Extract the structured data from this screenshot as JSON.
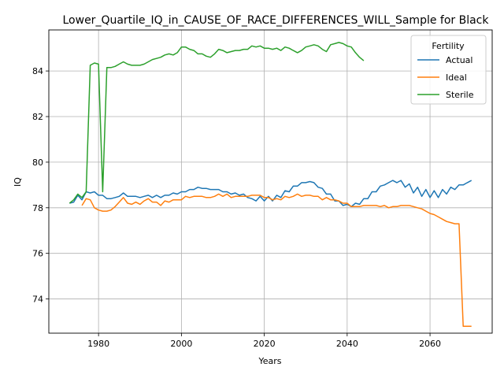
{
  "chart_data": {
    "type": "line",
    "title": "Lower_Quartile_IQ_in_CAUSE_OF_RACE_DIFFERENCES_WILL_Sample for Black",
    "xlabel": "Years",
    "ylabel": "IQ",
    "xlim": [
      1968,
      2075
    ],
    "ylim": [
      72.5,
      85.8
    ],
    "xticks": [
      1980,
      2000,
      2020,
      2040,
      2060
    ],
    "yticks": [
      74,
      76,
      78,
      80,
      82,
      84
    ],
    "grid": true,
    "legend": {
      "title": "Fertility",
      "placement": "top-right"
    },
    "series": [
      {
        "name": "Actual",
        "color": "#1f77b4",
        "points": [
          [
            1973,
            78.2
          ],
          [
            1974,
            78.25
          ],
          [
            1975,
            78.55
          ],
          [
            1976,
            78.35
          ],
          [
            1977,
            78.7
          ],
          [
            1978,
            78.65
          ],
          [
            1979,
            78.7
          ],
          [
            1980,
            78.55
          ],
          [
            1981,
            78.55
          ],
          [
            1982,
            78.4
          ],
          [
            1983,
            78.4
          ],
          [
            1984,
            78.45
          ],
          [
            1985,
            78.5
          ],
          [
            1986,
            78.65
          ],
          [
            1987,
            78.5
          ],
          [
            1988,
            78.5
          ],
          [
            1989,
            78.5
          ],
          [
            1990,
            78.45
          ],
          [
            1991,
            78.5
          ],
          [
            1992,
            78.55
          ],
          [
            1993,
            78.45
          ],
          [
            1994,
            78.55
          ],
          [
            1995,
            78.45
          ],
          [
            1996,
            78.55
          ],
          [
            1997,
            78.55
          ],
          [
            1998,
            78.65
          ],
          [
            1999,
            78.6
          ],
          [
            2000,
            78.7
          ],
          [
            2001,
            78.7
          ],
          [
            2002,
            78.8
          ],
          [
            2003,
            78.8
          ],
          [
            2004,
            78.9
          ],
          [
            2005,
            78.85
          ],
          [
            2006,
            78.85
          ],
          [
            2007,
            78.8
          ],
          [
            2008,
            78.8
          ],
          [
            2009,
            78.8
          ],
          [
            2010,
            78.7
          ],
          [
            2011,
            78.7
          ],
          [
            2012,
            78.6
          ],
          [
            2013,
            78.65
          ],
          [
            2014,
            78.55
          ],
          [
            2015,
            78.6
          ],
          [
            2016,
            78.45
          ],
          [
            2017,
            78.4
          ],
          [
            2018,
            78.3
          ],
          [
            2019,
            78.5
          ],
          [
            2020,
            78.3
          ],
          [
            2021,
            78.5
          ],
          [
            2022,
            78.3
          ],
          [
            2023,
            78.55
          ],
          [
            2024,
            78.45
          ],
          [
            2025,
            78.75
          ],
          [
            2026,
            78.7
          ],
          [
            2027,
            78.95
          ],
          [
            2028,
            78.95
          ],
          [
            2029,
            79.1
          ],
          [
            2030,
            79.1
          ],
          [
            2031,
            79.15
          ],
          [
            2032,
            79.1
          ],
          [
            2033,
            78.9
          ],
          [
            2034,
            78.85
          ],
          [
            2035,
            78.6
          ],
          [
            2036,
            78.6
          ],
          [
            2037,
            78.3
          ],
          [
            2038,
            78.3
          ],
          [
            2039,
            78.1
          ],
          [
            2040,
            78.15
          ],
          [
            2041,
            78.05
          ],
          [
            2042,
            78.2
          ],
          [
            2043,
            78.15
          ],
          [
            2044,
            78.4
          ],
          [
            2045,
            78.4
          ],
          [
            2046,
            78.7
          ],
          [
            2047,
            78.7
          ],
          [
            2048,
            78.95
          ],
          [
            2049,
            79.0
          ],
          [
            2050,
            79.1
          ],
          [
            2051,
            79.2
          ],
          [
            2052,
            79.1
          ],
          [
            2053,
            79.2
          ],
          [
            2054,
            78.9
          ],
          [
            2055,
            79.05
          ],
          [
            2056,
            78.65
          ],
          [
            2057,
            78.9
          ],
          [
            2058,
            78.5
          ],
          [
            2059,
            78.8
          ],
          [
            2060,
            78.45
          ],
          [
            2061,
            78.75
          ],
          [
            2062,
            78.45
          ],
          [
            2063,
            78.8
          ],
          [
            2064,
            78.6
          ],
          [
            2065,
            78.9
          ],
          [
            2066,
            78.8
          ],
          [
            2067,
            79.0
          ],
          [
            2068,
            79.0
          ],
          [
            2069,
            79.1
          ],
          [
            2070,
            79.2
          ]
        ]
      },
      {
        "name": "Ideal",
        "color": "#ff7f0e",
        "points": [
          [
            1976,
            78.1
          ],
          [
            1977,
            78.4
          ],
          [
            1978,
            78.35
          ],
          [
            1979,
            78.0
          ],
          [
            1980,
            77.9
          ],
          [
            1981,
            77.85
          ],
          [
            1982,
            77.85
          ],
          [
            1983,
            77.9
          ],
          [
            1984,
            78.05
          ],
          [
            1985,
            78.25
          ],
          [
            1986,
            78.45
          ],
          [
            1987,
            78.2
          ],
          [
            1988,
            78.15
          ],
          [
            1989,
            78.25
          ],
          [
            1990,
            78.15
          ],
          [
            1991,
            78.3
          ],
          [
            1992,
            78.4
          ],
          [
            1993,
            78.25
          ],
          [
            1994,
            78.25
          ],
          [
            1995,
            78.1
          ],
          [
            1996,
            78.3
          ],
          [
            1997,
            78.25
          ],
          [
            1998,
            78.35
          ],
          [
            1999,
            78.35
          ],
          [
            2000,
            78.35
          ],
          [
            2001,
            78.5
          ],
          [
            2002,
            78.45
          ],
          [
            2003,
            78.5
          ],
          [
            2004,
            78.5
          ],
          [
            2005,
            78.5
          ],
          [
            2006,
            78.45
          ],
          [
            2007,
            78.45
          ],
          [
            2008,
            78.5
          ],
          [
            2009,
            78.6
          ],
          [
            2010,
            78.5
          ],
          [
            2011,
            78.6
          ],
          [
            2012,
            78.45
          ],
          [
            2013,
            78.5
          ],
          [
            2014,
            78.5
          ],
          [
            2015,
            78.5
          ],
          [
            2016,
            78.5
          ],
          [
            2017,
            78.55
          ],
          [
            2018,
            78.55
          ],
          [
            2019,
            78.55
          ],
          [
            2020,
            78.45
          ],
          [
            2021,
            78.45
          ],
          [
            2022,
            78.35
          ],
          [
            2023,
            78.4
          ],
          [
            2024,
            78.35
          ],
          [
            2025,
            78.5
          ],
          [
            2026,
            78.45
          ],
          [
            2027,
            78.5
          ],
          [
            2028,
            78.6
          ],
          [
            2029,
            78.5
          ],
          [
            2030,
            78.55
          ],
          [
            2031,
            78.55
          ],
          [
            2032,
            78.5
          ],
          [
            2033,
            78.5
          ],
          [
            2034,
            78.35
          ],
          [
            2035,
            78.45
          ],
          [
            2036,
            78.35
          ],
          [
            2037,
            78.35
          ],
          [
            2038,
            78.3
          ],
          [
            2039,
            78.2
          ],
          [
            2040,
            78.2
          ],
          [
            2041,
            78.05
          ],
          [
            2042,
            78.05
          ],
          [
            2043,
            78.05
          ],
          [
            2044,
            78.1
          ],
          [
            2045,
            78.1
          ],
          [
            2046,
            78.1
          ],
          [
            2047,
            78.1
          ],
          [
            2048,
            78.05
          ],
          [
            2049,
            78.1
          ],
          [
            2050,
            78.0
          ],
          [
            2051,
            78.05
          ],
          [
            2052,
            78.05
          ],
          [
            2053,
            78.1
          ],
          [
            2054,
            78.1
          ],
          [
            2055,
            78.1
          ],
          [
            2056,
            78.05
          ],
          [
            2057,
            78.0
          ],
          [
            2058,
            77.95
          ],
          [
            2059,
            77.85
          ],
          [
            2060,
            77.75
          ],
          [
            2061,
            77.7
          ],
          [
            2062,
            77.6
          ],
          [
            2063,
            77.5
          ],
          [
            2064,
            77.4
          ],
          [
            2065,
            77.35
          ],
          [
            2066,
            77.3
          ],
          [
            2067,
            77.3
          ],
          [
            2068,
            72.8
          ],
          [
            2069,
            72.8
          ],
          [
            2070,
            72.8
          ]
        ]
      },
      {
        "name": "Sterile",
        "color": "#2ca02c",
        "points": [
          [
            1973,
            78.2
          ],
          [
            1974,
            78.35
          ],
          [
            1975,
            78.6
          ],
          [
            1976,
            78.45
          ],
          [
            1977,
            78.7
          ],
          [
            1978,
            84.25
          ],
          [
            1979,
            84.35
          ],
          [
            1980,
            84.3
          ],
          [
            1981,
            78.7
          ],
          [
            1982,
            84.15
          ],
          [
            1983,
            84.15
          ],
          [
            1984,
            84.2
          ],
          [
            1985,
            84.3
          ],
          [
            1986,
            84.4
          ],
          [
            1987,
            84.3
          ],
          [
            1988,
            84.25
          ],
          [
            1989,
            84.25
          ],
          [
            1990,
            84.25
          ],
          [
            1991,
            84.3
          ],
          [
            1992,
            84.4
          ],
          [
            1993,
            84.5
          ],
          [
            1994,
            84.55
          ],
          [
            1995,
            84.6
          ],
          [
            1996,
            84.7
          ],
          [
            1997,
            84.75
          ],
          [
            1998,
            84.7
          ],
          [
            1999,
            84.8
          ],
          [
            2000,
            85.05
          ],
          [
            2001,
            85.05
          ],
          [
            2002,
            84.95
          ],
          [
            2003,
            84.9
          ],
          [
            2004,
            84.75
          ],
          [
            2005,
            84.75
          ],
          [
            2006,
            84.65
          ],
          [
            2007,
            84.6
          ],
          [
            2008,
            84.75
          ],
          [
            2009,
            84.95
          ],
          [
            2010,
            84.9
          ],
          [
            2011,
            84.8
          ],
          [
            2012,
            84.85
          ],
          [
            2013,
            84.9
          ],
          [
            2014,
            84.9
          ],
          [
            2015,
            84.95
          ],
          [
            2016,
            84.95
          ],
          [
            2017,
            85.1
          ],
          [
            2018,
            85.05
          ],
          [
            2019,
            85.1
          ],
          [
            2020,
            85.0
          ],
          [
            2021,
            85.0
          ],
          [
            2022,
            84.95
          ],
          [
            2023,
            85.0
          ],
          [
            2024,
            84.9
          ],
          [
            2025,
            85.05
          ],
          [
            2026,
            85.0
          ],
          [
            2027,
            84.9
          ],
          [
            2028,
            84.8
          ],
          [
            2029,
            84.9
          ],
          [
            2030,
            85.05
          ],
          [
            2031,
            85.1
          ],
          [
            2032,
            85.15
          ],
          [
            2033,
            85.1
          ],
          [
            2034,
            84.95
          ],
          [
            2035,
            84.85
          ],
          [
            2036,
            85.15
          ],
          [
            2037,
            85.2
          ],
          [
            2038,
            85.25
          ],
          [
            2039,
            85.2
          ],
          [
            2040,
            85.1
          ],
          [
            2041,
            85.05
          ],
          [
            2042,
            84.8
          ],
          [
            2043,
            84.6
          ],
          [
            2044,
            84.45
          ]
        ]
      }
    ]
  }
}
